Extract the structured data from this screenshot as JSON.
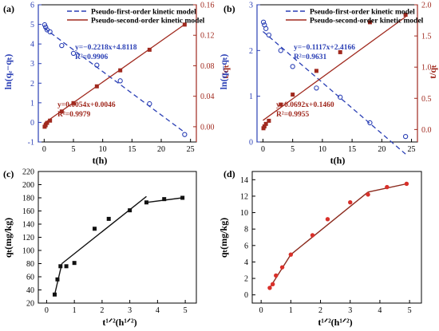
{
  "chart_data": [
    {
      "panel": "(a)",
      "type": "scatter",
      "xlabel": "t(h)",
      "ylabel_left": "ln(qₑ−qₜ)",
      "ylabel_right": "t/qₜ",
      "xlim": [
        -1,
        26
      ],
      "xticks": [
        0,
        5,
        10,
        15,
        20,
        25
      ],
      "ylim_left": [
        -1,
        6
      ],
      "yticks_left": [
        -1,
        0,
        1,
        2,
        3,
        4,
        5,
        6
      ],
      "ylim_right": [
        -0.02,
        0.16
      ],
      "yticks_right": [
        0.0,
        0.04,
        0.08,
        0.12,
        0.16
      ],
      "right_tick_labels": [
        "0.00",
        "0.04",
        "0.08",
        "0.12",
        "0.16"
      ],
      "legend": [
        "Pseudo-first-order kinetic model",
        "Pseudo-second-order kinetic model"
      ],
      "colors": {
        "first": "#2a3fb5",
        "second": "#a0291e"
      },
      "series": [
        {
          "axis": "left",
          "style": "open-circle",
          "x": [
            0.083,
            0.25,
            0.5,
            1,
            3,
            5,
            9,
            13,
            18,
            24
          ],
          "y": [
            4.98,
            4.86,
            4.72,
            4.62,
            3.92,
            3.52,
            2.92,
            2.12,
            0.95,
            -0.62
          ],
          "fit": {
            "slope": -0.2218,
            "intercept": 4.8118,
            "x": [
              0,
              24
            ]
          }
        },
        {
          "axis": "right",
          "style": "filled-square",
          "x": [
            0.083,
            0.25,
            0.5,
            1,
            3,
            5,
            9,
            13,
            18,
            24
          ],
          "y": [
            0.0,
            0.002,
            0.005,
            0.008,
            0.02,
            0.031,
            0.053,
            0.074,
            0.101,
            0.134
          ],
          "fit": {
            "slope": 0.0054,
            "intercept": 0.0046,
            "x": [
              0,
              24
            ]
          }
        }
      ],
      "annotations": [
        "y=−0.2218x+4.8118",
        "R²=0.9906",
        "y=0.0054x+0.0046",
        "R²=0.9979"
      ]
    },
    {
      "panel": "(b)",
      "type": "scatter",
      "xlabel": "t(h)",
      "ylabel_left": "ln(qₑ−qₜ)",
      "ylabel_right": "t/qₜ",
      "xlim": [
        -1,
        26
      ],
      "xticks": [
        0,
        5,
        10,
        15,
        20,
        25
      ],
      "ylim_left": [
        0,
        3
      ],
      "yticks_left": [
        0,
        1,
        2,
        3
      ],
      "ylim_right": [
        -0.2,
        2.0
      ],
      "yticks_right": [
        0.0,
        0.5,
        1.0,
        1.5,
        2.0
      ],
      "right_tick_labels": [
        "0.0",
        "0.5",
        "1.0",
        "1.5",
        "2.0"
      ],
      "legend": [
        "Pseudo-first-order kinetic model",
        "Pseudo-second-order kinetic model"
      ],
      "colors": {
        "first": "#2a3fb5",
        "second": "#a0291e"
      },
      "series": [
        {
          "axis": "left",
          "style": "open-circle",
          "x": [
            0.083,
            0.25,
            0.5,
            1,
            3,
            5,
            9,
            13,
            18,
            24
          ],
          "y": [
            2.62,
            2.56,
            2.48,
            2.34,
            2.0,
            1.65,
            1.18,
            0.98,
            0.42,
            0.12
          ],
          "fit": {
            "slope": -0.1117,
            "intercept": 2.4166,
            "x": [
              0,
              24
            ]
          }
        },
        {
          "axis": "right",
          "style": "filled-square",
          "x": [
            0.083,
            0.25,
            0.5,
            1,
            3,
            5,
            9,
            13,
            18,
            24
          ],
          "y": [
            0.02,
            0.05,
            0.09,
            0.14,
            0.4,
            0.56,
            0.94,
            1.24,
            1.72,
            1.84
          ],
          "fit": {
            "slope": 0.0692,
            "intercept": 0.146,
            "x": [
              0,
              24
            ]
          }
        }
      ],
      "annotations": [
        "y=−0.1117x+2.4166",
        "R²=0.9631",
        "y=0.0692x+0.1460",
        "R²=0.9955"
      ]
    },
    {
      "panel": "(c)",
      "type": "scatter",
      "xlabel": "t¹ᐟ²(h¹ᐟ²)",
      "ylabel": "qₜ(mg/kg)",
      "xlim": [
        -0.3,
        5.4
      ],
      "xticks": [
        0,
        1,
        2,
        3,
        4,
        5
      ],
      "ylim": [
        20,
        220
      ],
      "yticks": [
        20,
        40,
        60,
        80,
        100,
        120,
        140,
        160,
        180,
        200,
        220
      ],
      "colors": {
        "points": "#111111",
        "lines": "#111111"
      },
      "series": [
        {
          "style": "filled-square",
          "x": [
            0.29,
            0.39,
            0.5,
            0.71,
            1.0,
            1.73,
            2.24,
            3.0,
            3.6,
            4.24,
            4.9
          ],
          "y": [
            33,
            56,
            76,
            76,
            81,
            133,
            148,
            161,
            173,
            178,
            180
          ]
        }
      ],
      "segments": [
        {
          "x": [
            0.29,
            0.55
          ],
          "y": [
            33,
            80
          ]
        },
        {
          "x": [
            0.55,
            3.6
          ],
          "y": [
            80,
            182
          ]
        },
        {
          "x": [
            3.6,
            4.9
          ],
          "y": [
            173,
            180
          ]
        }
      ]
    },
    {
      "panel": "(d)",
      "type": "line",
      "xlabel": "t¹ᐟ²(h¹ᐟ²)",
      "ylabel": "qₜ(mg/kg)",
      "xlim": [
        -0.3,
        5.4
      ],
      "xticks": [
        0,
        1,
        2,
        3,
        4,
        5
      ],
      "ylim": [
        -1,
        15
      ],
      "yticks": [
        0,
        2,
        4,
        6,
        8,
        10,
        12,
        14
      ],
      "colors": {
        "points": "#d9302a",
        "lines": "#8b2a1d"
      },
      "series": [
        {
          "style": "filled-circle",
          "x": [
            0.29,
            0.39,
            0.5,
            0.71,
            1.0,
            1.73,
            2.24,
            3.0,
            3.6,
            4.24,
            4.9
          ],
          "y": [
            0.85,
            1.3,
            2.35,
            3.35,
            4.9,
            7.25,
            9.2,
            11.25,
            12.2,
            13.1,
            13.5
          ]
        }
      ],
      "segments": [
        {
          "x": [
            0.29,
            1.0
          ],
          "y": [
            0.85,
            4.9
          ]
        },
        {
          "x": [
            1.0,
            3.6
          ],
          "y": [
            4.9,
            12.5
          ]
        },
        {
          "x": [
            3.6,
            4.9
          ],
          "y": [
            12.5,
            13.5
          ]
        }
      ]
    }
  ]
}
